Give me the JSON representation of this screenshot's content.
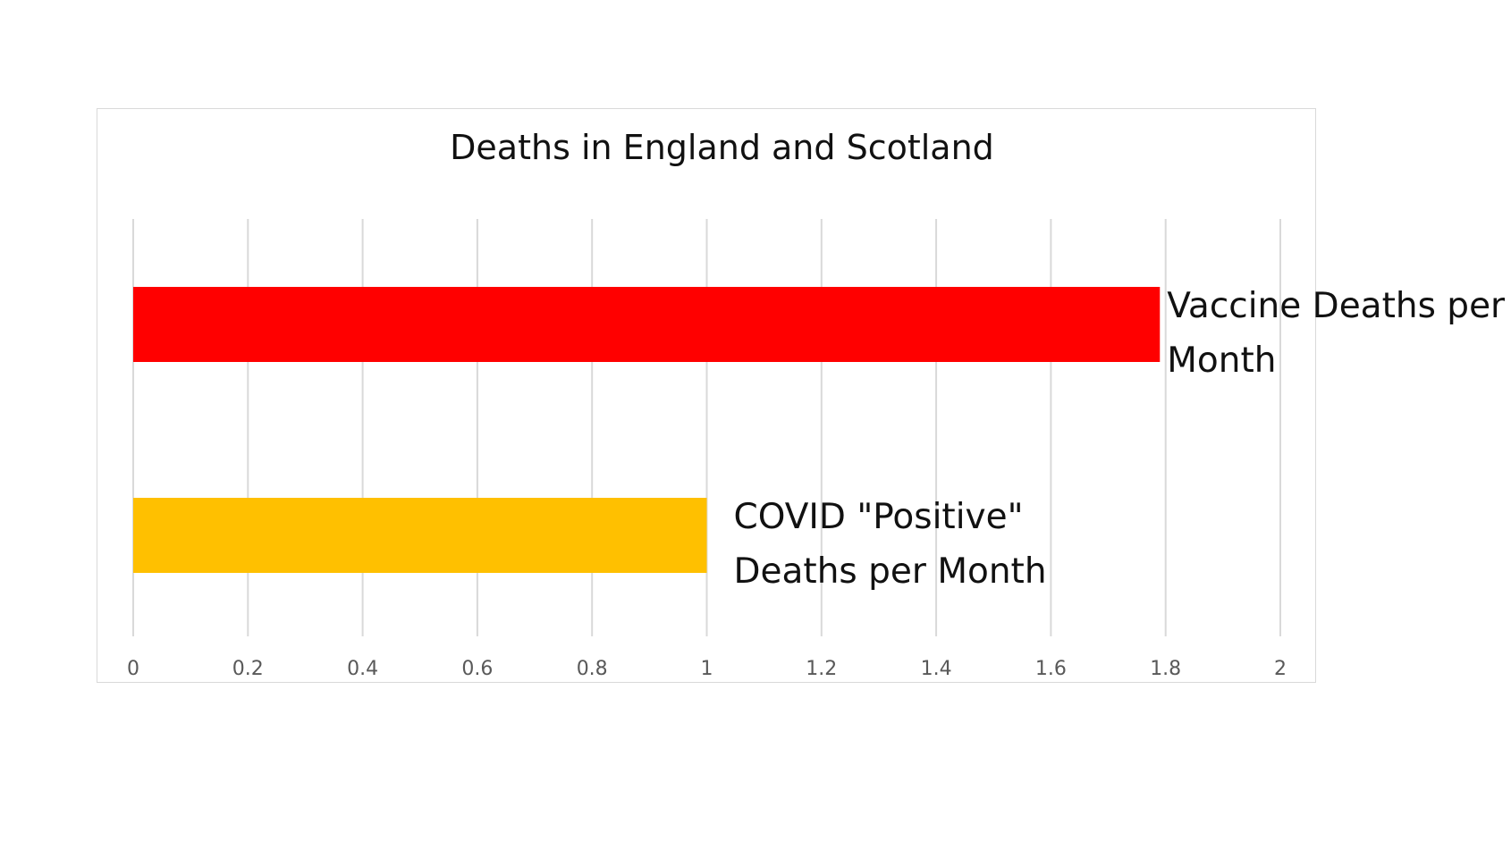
{
  "chart_data": {
    "type": "bar",
    "orientation": "horizontal",
    "title": "Deaths in England and Scotland",
    "xlabel": "",
    "ylabel": "",
    "xlim": [
      0,
      2
    ],
    "grid": true,
    "ticks": [
      "0",
      "0.2",
      "0.4",
      "0.6",
      "0.8",
      "1",
      "1.2",
      "1.4",
      "1.6",
      "1.8",
      "2"
    ],
    "tick_values": [
      0,
      0.2,
      0.4,
      0.6,
      0.8,
      1,
      1.2,
      1.4,
      1.6,
      1.8,
      2
    ],
    "bars": [
      {
        "label_lines": [
          "Vaccine Deaths per",
          "Month"
        ],
        "value": 1.79,
        "color": "#ff0000"
      },
      {
        "label_lines": [
          "COVID \"Positive\"",
          "Deaths per Month"
        ],
        "value": 1.0,
        "color": "#ffc000"
      }
    ]
  }
}
